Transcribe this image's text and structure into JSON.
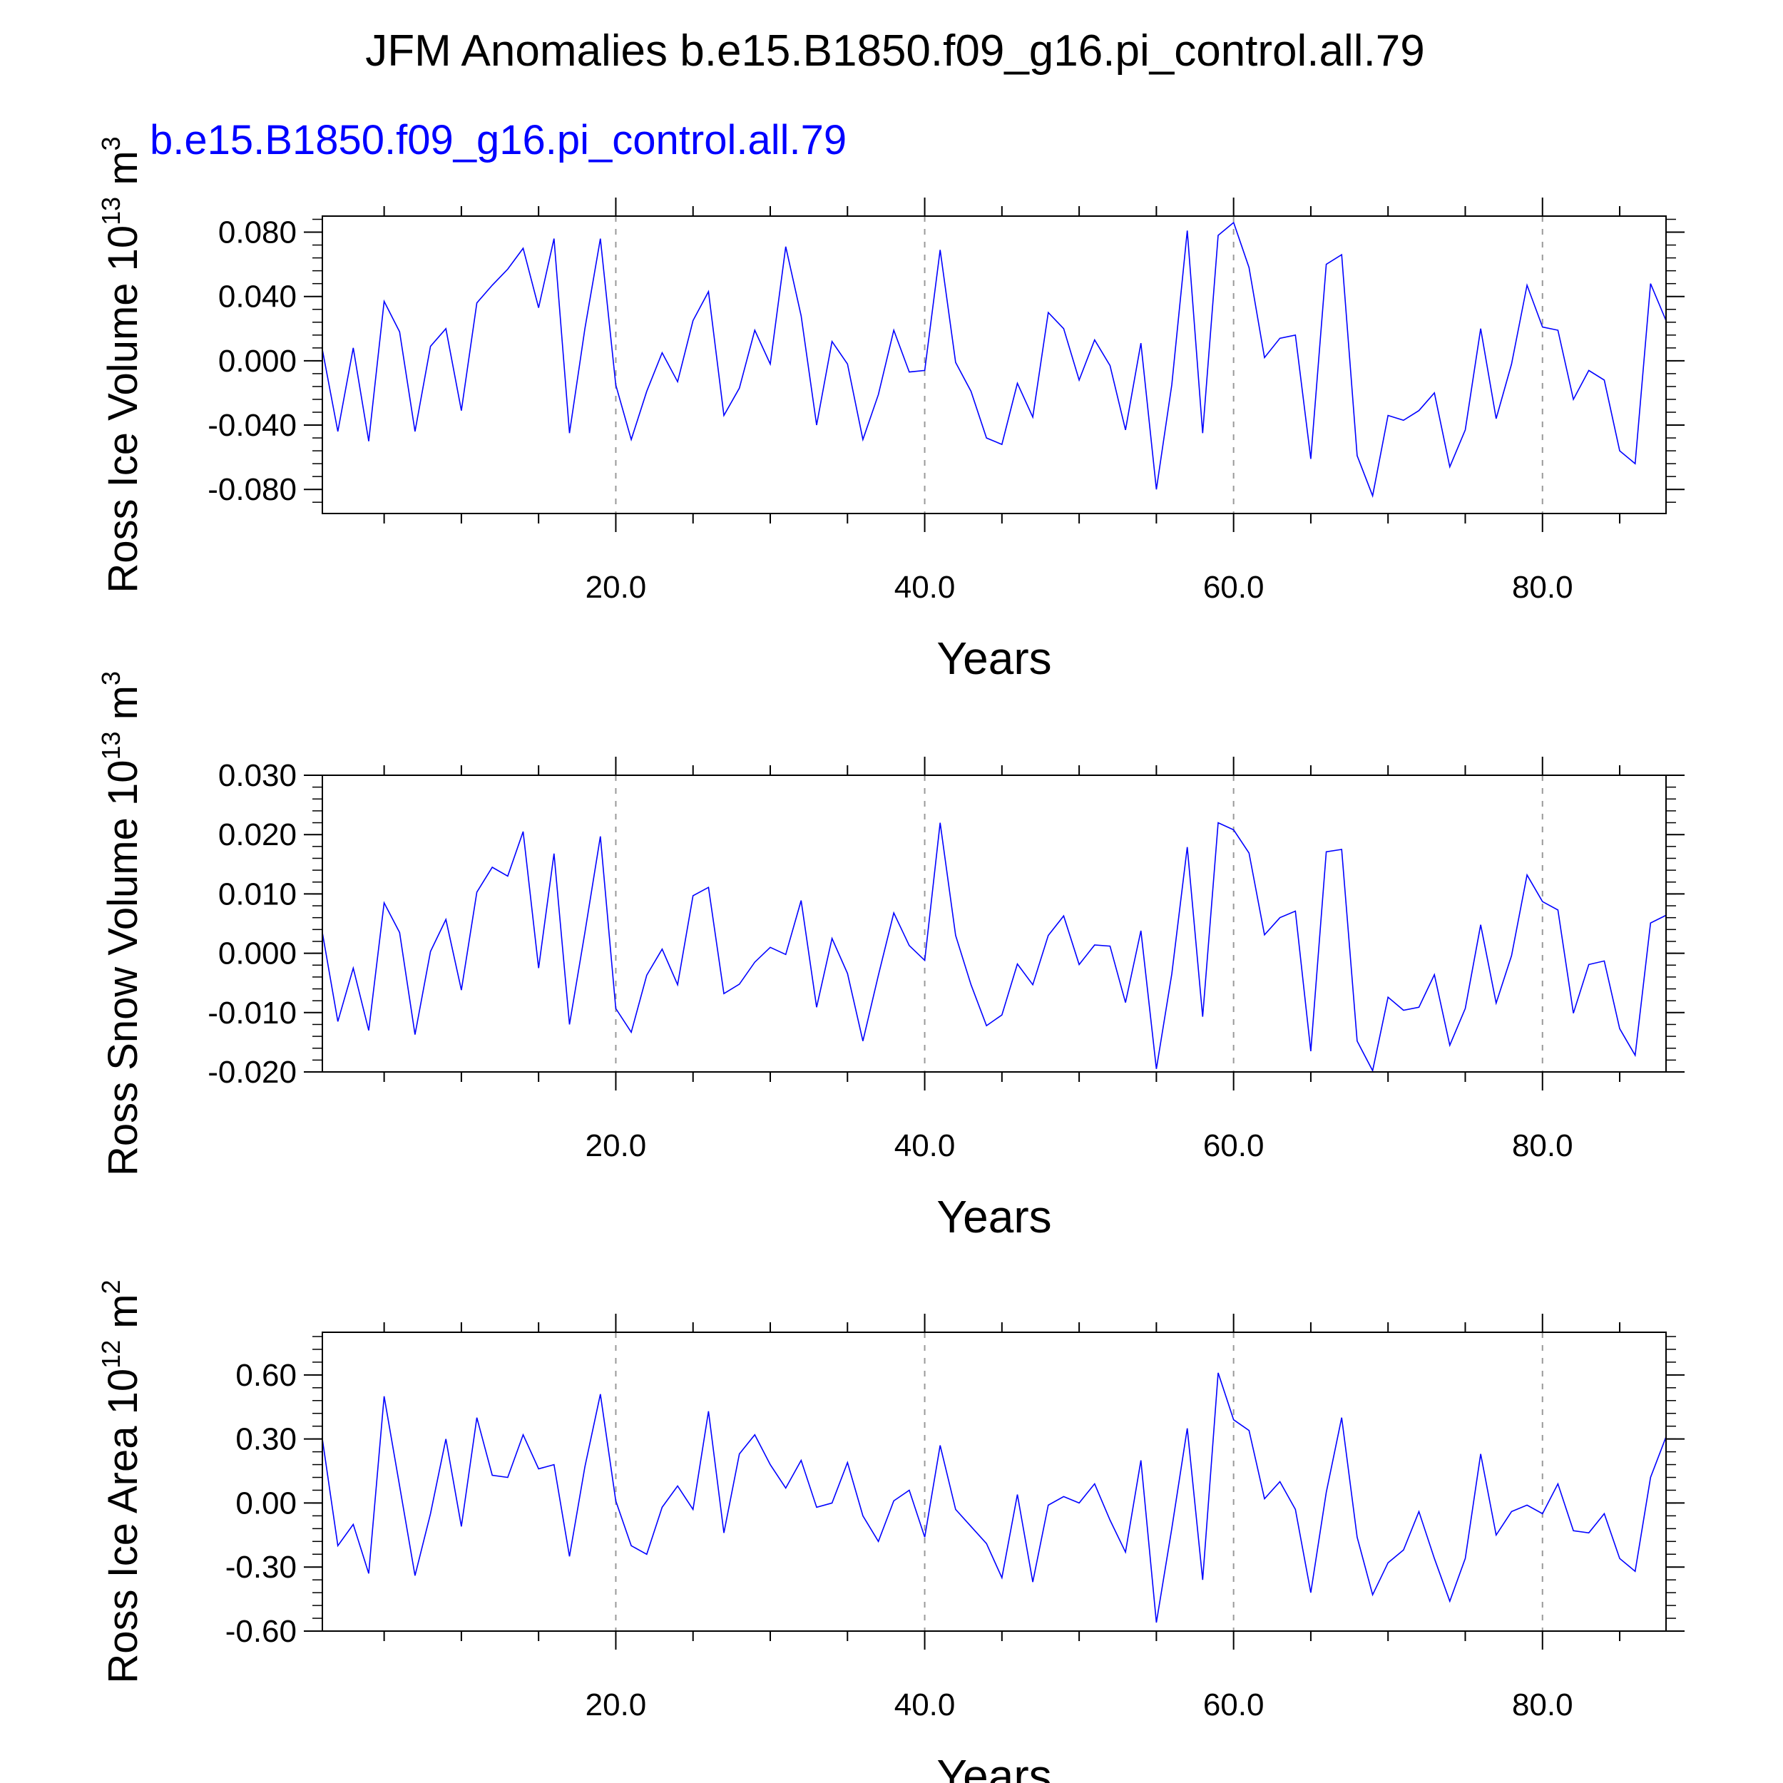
{
  "chart_data": {
    "title": "JFM Anomalies b.e15.B1850.f09_g16.pi_control.all.79",
    "subtitle": "b.e15.B1850.f09_g16.pi_control.all.79",
    "series_color": "#0000ff",
    "grid_color": "#999999",
    "panels": [
      {
        "type": "line",
        "ylabel": {
          "main": "Ross Ice Volume 10",
          "exp": "13",
          "unit": " m",
          "unit_exp": "3"
        },
        "xlabel": "Years",
        "xlim": [
          1,
          88
        ],
        "ylim": [
          -0.095,
          0.09
        ],
        "yticks": [
          -0.08,
          -0.04,
          0.0,
          0.04,
          0.08
        ],
        "ytick_labels": [
          "-0.080",
          "-0.040",
          "0.000",
          "0.040",
          "0.080"
        ],
        "yminor_step": 0.008,
        "xticks": [
          20,
          40,
          60,
          80
        ],
        "xtick_labels": [
          "20.0",
          "40.0",
          "60.0",
          "80.0"
        ],
        "x": [
          1,
          2,
          3,
          4,
          5,
          6,
          7,
          8,
          9,
          10,
          11,
          12,
          13,
          14,
          15,
          16,
          17,
          18,
          19,
          20,
          21,
          22,
          23,
          24,
          25,
          26,
          27,
          28,
          29,
          30,
          31,
          32,
          33,
          34,
          35,
          36,
          37,
          38,
          39,
          40,
          41,
          42,
          43,
          44,
          45,
          46,
          47,
          48,
          49,
          50,
          51,
          52,
          53,
          54,
          55,
          56,
          57,
          58,
          59,
          60,
          61,
          62,
          63,
          64,
          65,
          66,
          67,
          68,
          69,
          70,
          71,
          72,
          73,
          74,
          75,
          76,
          77,
          78,
          79,
          80,
          81,
          82,
          83,
          84,
          85,
          86,
          87,
          88
        ],
        "values": [
          0.007,
          -0.044,
          0.008,
          -0.05,
          0.037,
          0.018,
          -0.044,
          0.009,
          0.02,
          -0.031,
          0.036,
          0.047,
          0.057,
          0.07,
          0.033,
          0.076,
          -0.045,
          0.02,
          0.076,
          -0.015,
          -0.049,
          -0.019,
          0.005,
          -0.013,
          0.025,
          0.043,
          -0.034,
          -0.017,
          0.019,
          -0.002,
          0.071,
          0.028,
          -0.04,
          0.012,
          -0.002,
          -0.049,
          -0.021,
          0.019,
          -0.007,
          -0.006,
          0.069,
          -0.001,
          -0.019,
          -0.048,
          -0.052,
          -0.014,
          -0.035,
          0.03,
          0.02,
          -0.012,
          0.013,
          -0.003,
          -0.043,
          0.011,
          -0.08,
          -0.015,
          0.081,
          -0.045,
          0.078,
          0.086,
          0.058,
          0.002,
          0.014,
          0.016,
          -0.061,
          0.06,
          0.066,
          -0.059,
          -0.084,
          -0.034,
          -0.037,
          -0.031,
          -0.02,
          -0.066,
          -0.043,
          0.02,
          -0.036,
          -0.002,
          0.047,
          0.021,
          0.019,
          -0.024,
          -0.006,
          -0.012,
          -0.056,
          -0.064,
          0.048,
          0.025
        ]
      },
      {
        "type": "line",
        "ylabel": {
          "main": "Ross Snow Volume 10",
          "exp": "13",
          "unit": " m",
          "unit_exp": "3"
        },
        "xlabel": "Years",
        "xlim": [
          1,
          88
        ],
        "ylim": [
          -0.02,
          0.03
        ],
        "yticks": [
          -0.02,
          -0.01,
          0.0,
          0.01,
          0.02,
          0.03
        ],
        "ytick_labels": [
          "-0.020",
          "-0.010",
          "0.000",
          "0.010",
          "0.020",
          "0.030"
        ],
        "yminor_step": 0.002,
        "xticks": [
          20,
          40,
          60,
          80
        ],
        "xtick_labels": [
          "20.0",
          "40.0",
          "60.0",
          "80.0"
        ],
        "x": [
          1,
          2,
          3,
          4,
          5,
          6,
          7,
          8,
          9,
          10,
          11,
          12,
          13,
          14,
          15,
          16,
          17,
          18,
          19,
          20,
          21,
          22,
          23,
          24,
          25,
          26,
          27,
          28,
          29,
          30,
          31,
          32,
          33,
          34,
          35,
          36,
          37,
          38,
          39,
          40,
          41,
          42,
          43,
          44,
          45,
          46,
          47,
          48,
          49,
          50,
          51,
          52,
          53,
          54,
          55,
          56,
          57,
          58,
          59,
          60,
          61,
          62,
          63,
          64,
          65,
          66,
          67,
          68,
          69,
          70,
          71,
          72,
          73,
          74,
          75,
          76,
          77,
          78,
          79,
          80,
          81,
          82,
          83,
          84,
          85,
          86,
          87,
          88
        ],
        "values": [
          0.0035,
          -0.0115,
          -0.0025,
          -0.013,
          0.0085,
          0.0035,
          -0.0137,
          0.0003,
          0.0057,
          -0.0062,
          0.0103,
          0.0145,
          0.013,
          0.0205,
          -0.0025,
          0.0168,
          -0.012,
          0.0035,
          0.0197,
          -0.0093,
          -0.0133,
          -0.0037,
          0.0007,
          -0.0053,
          0.0097,
          0.0111,
          -0.0068,
          -0.0052,
          -0.0015,
          0.001,
          -0.0002,
          0.0089,
          -0.0091,
          0.0025,
          -0.0034,
          -0.0148,
          -0.0037,
          0.0068,
          0.0013,
          -0.0012,
          0.022,
          0.003,
          -0.0053,
          -0.0122,
          -0.0104,
          -0.0018,
          -0.0053,
          0.003,
          0.0063,
          -0.0019,
          0.0014,
          0.0012,
          -0.0083,
          0.0038,
          -0.0195,
          -0.0035,
          0.0179,
          -0.0107,
          0.022,
          0.0208,
          0.0169,
          0.0031,
          0.006,
          0.0071,
          -0.0165,
          0.0171,
          0.0175,
          -0.0148,
          -0.0198,
          -0.0074,
          -0.0096,
          -0.0091,
          -0.0036,
          -0.0155,
          -0.0093,
          0.0048,
          -0.0084,
          -0.0004,
          0.0132,
          0.0087,
          0.0073,
          -0.0101,
          -0.0019,
          -0.0013,
          -0.0127,
          -0.0172,
          0.0051,
          0.0064
        ]
      },
      {
        "type": "line",
        "ylabel": {
          "main": "Ross Ice Area 10",
          "exp": "12",
          "unit": " m",
          "unit_exp": "2"
        },
        "xlabel": "Years",
        "xlim": [
          1,
          88
        ],
        "ylim": [
          -0.6,
          0.8
        ],
        "yticks": [
          -0.6,
          -0.3,
          0.0,
          0.3,
          0.6
        ],
        "ytick_labels": [
          "-0.60",
          "-0.30",
          "0.00",
          "0.30",
          "0.60"
        ],
        "yminor_step": 0.06,
        "xticks": [
          20,
          40,
          60,
          80
        ],
        "xtick_labels": [
          "20.0",
          "40.0",
          "60.0",
          "80.0"
        ],
        "x": [
          1,
          2,
          3,
          4,
          5,
          6,
          7,
          8,
          9,
          10,
          11,
          12,
          13,
          14,
          15,
          16,
          17,
          18,
          19,
          20,
          21,
          22,
          23,
          24,
          25,
          26,
          27,
          28,
          29,
          30,
          31,
          32,
          33,
          34,
          35,
          36,
          37,
          38,
          39,
          40,
          41,
          42,
          43,
          44,
          45,
          46,
          47,
          48,
          49,
          50,
          51,
          52,
          53,
          54,
          55,
          56,
          57,
          58,
          59,
          60,
          61,
          62,
          63,
          64,
          65,
          66,
          67,
          68,
          69,
          70,
          71,
          72,
          73,
          74,
          75,
          76,
          77,
          78,
          79,
          80,
          81,
          82,
          83,
          84,
          85,
          86,
          87,
          88
        ],
        "values": [
          0.3,
          -0.2,
          -0.1,
          -0.33,
          0.5,
          0.08,
          -0.34,
          -0.05,
          0.3,
          -0.11,
          0.4,
          0.13,
          0.12,
          0.32,
          0.16,
          0.18,
          -0.25,
          0.17,
          0.51,
          0.01,
          -0.2,
          -0.24,
          -0.02,
          0.08,
          -0.03,
          0.43,
          -0.14,
          0.23,
          0.32,
          0.18,
          0.07,
          0.2,
          -0.02,
          0.0,
          0.19,
          -0.06,
          -0.18,
          0.01,
          0.06,
          -0.16,
          0.27,
          -0.03,
          -0.11,
          -0.19,
          -0.35,
          0.04,
          -0.37,
          -0.01,
          0.03,
          0.0,
          0.09,
          -0.08,
          -0.23,
          0.2,
          -0.56,
          -0.12,
          0.35,
          -0.36,
          0.61,
          0.39,
          0.34,
          0.02,
          0.1,
          -0.03,
          -0.42,
          0.05,
          0.4,
          -0.16,
          -0.43,
          -0.28,
          -0.22,
          -0.04,
          -0.26,
          -0.46,
          -0.26,
          0.23,
          -0.15,
          -0.04,
          -0.01,
          -0.05,
          0.09,
          -0.13,
          -0.14,
          -0.05,
          -0.26,
          -0.32,
          0.12,
          0.31
        ]
      }
    ]
  }
}
